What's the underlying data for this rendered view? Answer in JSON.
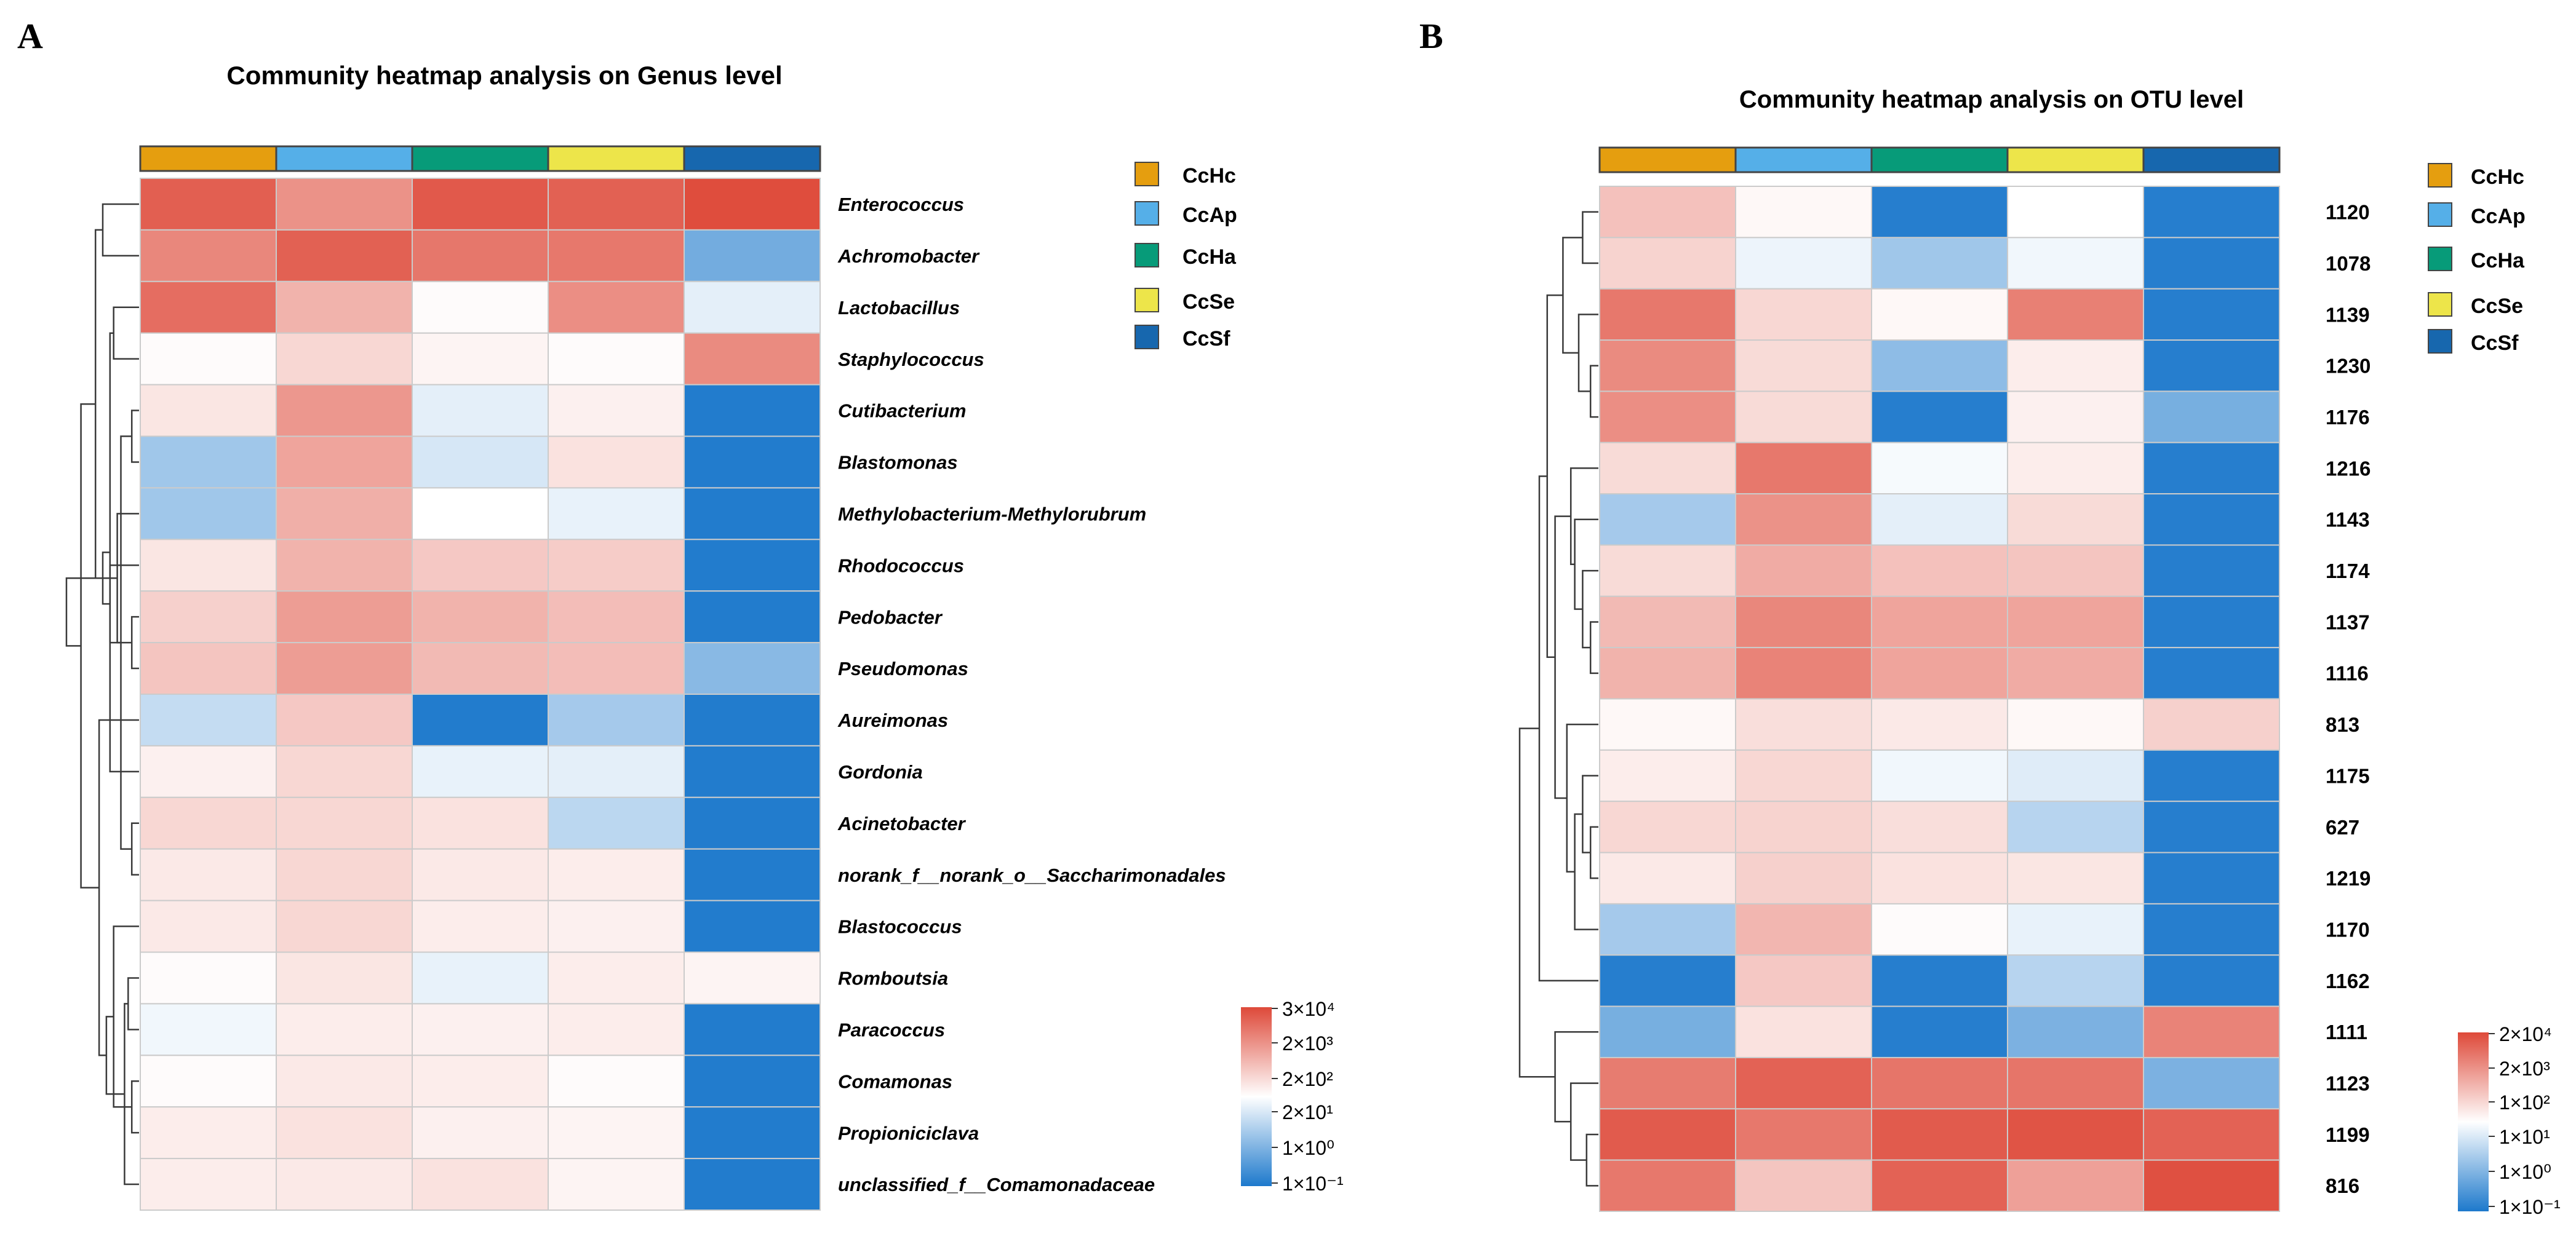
{
  "colors": {
    "CcHc": "#E59E0F",
    "CcAp": "#55AFE8",
    "CcHa": "#079B79",
    "CcSe": "#EDE54A",
    "CcSf": "#1767AE",
    "scale_low": "#1D79CC",
    "scale_mid": "#FFFFFF",
    "scale_high": "#DE4939",
    "dendrogram": "#3A3A3A",
    "grid": "#CBCBCB"
  },
  "chart_data": [
    {
      "type": "heatmap",
      "panel_label": "A",
      "title": "Community heatmap analysis on Genus level",
      "samples": [
        "CcHc",
        "CcAp",
        "CcHa",
        "CcSe",
        "CcSf"
      ],
      "legend": [
        "CcHc",
        "CcAp",
        "CcHa",
        "CcSe",
        "CcSf"
      ],
      "rows": [
        "Enterococcus",
        "Achromobacter",
        "Lactobacillus",
        "Staphylococcus",
        "Cutibacterium",
        "Blastomonas",
        "Methylobacterium-Methylorubrum",
        "Rhodococcus",
        "Pedobacter",
        "Pseudomonas",
        "Aureimonas",
        "Gordonia",
        "Acinetobacter",
        "norank_f__norank_o__Saccharimonadales",
        "Blastococcus",
        "Romboutsia",
        "Paracoccus",
        "Comamonas",
        "Propioniciclava",
        "unclassified_f__Comamonadaceae"
      ],
      "values": [
        [
          0.88,
          0.6,
          0.91,
          0.87,
          0.98
        ],
        [
          0.66,
          0.87,
          0.75,
          0.74,
          -0.62
        ],
        [
          0.8,
          0.42,
          0.02,
          0.62,
          -0.12
        ],
        [
          0.02,
          0.22,
          0.06,
          0.02,
          0.64
        ],
        [
          0.14,
          0.57,
          -0.12,
          0.08,
          -0.98
        ],
        [
          -0.42,
          0.5,
          -0.18,
          0.16,
          -0.98
        ],
        [
          -0.42,
          0.44,
          0.0,
          -0.1,
          -0.98
        ],
        [
          0.14,
          0.42,
          0.3,
          0.28,
          -0.98
        ],
        [
          0.26,
          0.54,
          0.42,
          0.36,
          -0.98
        ],
        [
          0.32,
          0.54,
          0.38,
          0.36,
          -0.52
        ],
        [
          -0.26,
          0.3,
          -0.98,
          -0.4,
          -0.98
        ],
        [
          0.08,
          0.22,
          -0.1,
          -0.12,
          -0.98
        ],
        [
          0.22,
          0.22,
          0.16,
          -0.3,
          -0.98
        ],
        [
          0.12,
          0.22,
          0.12,
          0.1,
          -0.98
        ],
        [
          0.12,
          0.22,
          0.1,
          0.08,
          -0.98
        ],
        [
          0.02,
          0.14,
          -0.1,
          0.1,
          0.06
        ],
        [
          -0.06,
          0.1,
          0.08,
          0.1,
          -0.98
        ],
        [
          0.02,
          0.12,
          0.1,
          0.02,
          -0.98
        ],
        [
          0.1,
          0.16,
          0.08,
          0.06,
          -0.98
        ],
        [
          0.1,
          0.12,
          0.16,
          0.06,
          -0.98
        ]
      ],
      "value_scale": "normalized log abundance, -1 = 1×10⁻¹ (blue), 0 = midpoint (white), 1 = 3×10⁴ (red)",
      "colorbar_ticks": [
        "3×10⁴",
        "2×10³",
        "2×10²",
        "2×10¹",
        "1×10⁰",
        "1×10⁻¹"
      ],
      "dendrogram": {
        "merges": [
          [
            4,
            5,
            0.1
          ],
          [
            8,
            9,
            0.1
          ],
          [
            12,
            13,
            0.1
          ],
          [
            17,
            18,
            0.1
          ],
          [
            15,
            16,
            0.15
          ],
          [
            19,
            -5,
            0.2
          ],
          [
            -3,
            -1,
            0.25
          ],
          [
            -2,
            6,
            0.3
          ],
          [
            3,
            2,
            0.35
          ],
          [
            14,
            -4,
            0.35
          ],
          [
            -7,
            7,
            0.4
          ],
          [
            11,
            -9,
            0.4
          ],
          [
            -10,
            -6,
            0.45
          ],
          [
            0,
            1,
            0.5
          ],
          [
            -11,
            -12,
            0.5
          ],
          [
            -13,
            10,
            0.55
          ],
          [
            -14,
            -8,
            0.6
          ],
          [
            -16,
            -17,
            0.8
          ],
          [
            -15,
            -18,
            1.0
          ]
        ]
      }
    },
    {
      "type": "heatmap",
      "panel_label": "B",
      "title": "Community heatmap analysis on OTU level",
      "samples": [
        "CcHc",
        "CcAp",
        "CcHa",
        "CcSe",
        "CcSf"
      ],
      "legend": [
        "CcHc",
        "CcAp",
        "CcHa",
        "CcSe",
        "CcSf"
      ],
      "rows": [
        "1120",
        "1078",
        "1139",
        "1230",
        "1176",
        "1216",
        "1143",
        "1174",
        "1137",
        "1116",
        "813",
        "1175",
        "627",
        "1219",
        "1170",
        "1162",
        "1111",
        "1123",
        "1199",
        "816"
      ],
      "values": [
        [
          0.34,
          0.04,
          -0.96,
          0.0,
          -0.96
        ],
        [
          0.24,
          -0.08,
          -0.42,
          -0.06,
          -0.96
        ],
        [
          0.74,
          0.22,
          0.04,
          0.7,
          -0.96
        ],
        [
          0.64,
          0.2,
          -0.5,
          0.1,
          -0.96
        ],
        [
          0.62,
          0.2,
          -0.96,
          0.08,
          -0.6
        ],
        [
          0.2,
          0.74,
          -0.04,
          0.1,
          -0.96
        ],
        [
          -0.4,
          0.6,
          -0.12,
          0.2,
          -0.96
        ],
        [
          0.2,
          0.46,
          0.34,
          0.32,
          -0.96
        ],
        [
          0.38,
          0.66,
          0.5,
          0.5,
          -0.96
        ],
        [
          0.42,
          0.68,
          0.5,
          0.46,
          -0.96
        ],
        [
          0.04,
          0.18,
          0.12,
          0.04,
          0.26
        ],
        [
          0.1,
          0.22,
          -0.06,
          -0.14,
          -0.96
        ],
        [
          0.22,
          0.24,
          0.18,
          -0.32,
          -0.96
        ],
        [
          0.12,
          0.26,
          0.16,
          0.14,
          -0.96
        ],
        [
          -0.4,
          0.4,
          0.02,
          -0.1,
          -0.96
        ],
        [
          -0.96,
          0.3,
          -0.96,
          -0.32,
          -0.96
        ],
        [
          -0.6,
          0.16,
          -0.96,
          -0.58,
          0.68
        ],
        [
          0.72,
          0.86,
          0.76,
          0.76,
          -0.58
        ],
        [
          0.9,
          0.74,
          0.9,
          0.94,
          0.86
        ],
        [
          0.74,
          0.32,
          0.86,
          0.52,
          0.96
        ]
      ],
      "value_scale": "normalized log abundance, -1 = 1×10⁻¹ (blue), 0 = midpoint (white), 1 = 2×10⁴ (red)",
      "colorbar_ticks": [
        "2×10⁴",
        "2×10³",
        "1×10²",
        "1×10¹",
        "1×10⁰",
        "1×10⁻¹"
      ],
      "dendrogram": {
        "merges": [
          [
            0,
            1,
            0.2
          ],
          [
            3,
            4,
            0.1
          ],
          [
            2,
            -2,
            0.25
          ],
          [
            -1,
            -3,
            0.45
          ],
          [
            8,
            9,
            0.1
          ],
          [
            7,
            -5,
            0.2
          ],
          [
            6,
            -6,
            0.3
          ],
          [
            5,
            -7,
            0.35
          ],
          [
            12,
            13,
            0.1
          ],
          [
            11,
            -9,
            0.2
          ],
          [
            -10,
            14,
            0.3
          ],
          [
            10,
            -11,
            0.4
          ],
          [
            -8,
            -12,
            0.55
          ],
          [
            -4,
            -13,
            0.65
          ],
          [
            -14,
            15,
            0.75
          ],
          [
            18,
            19,
            0.15
          ],
          [
            17,
            -16,
            0.35
          ],
          [
            16,
            -17,
            0.55
          ],
          [
            -15,
            -18,
            1.0
          ]
        ]
      }
    }
  ]
}
